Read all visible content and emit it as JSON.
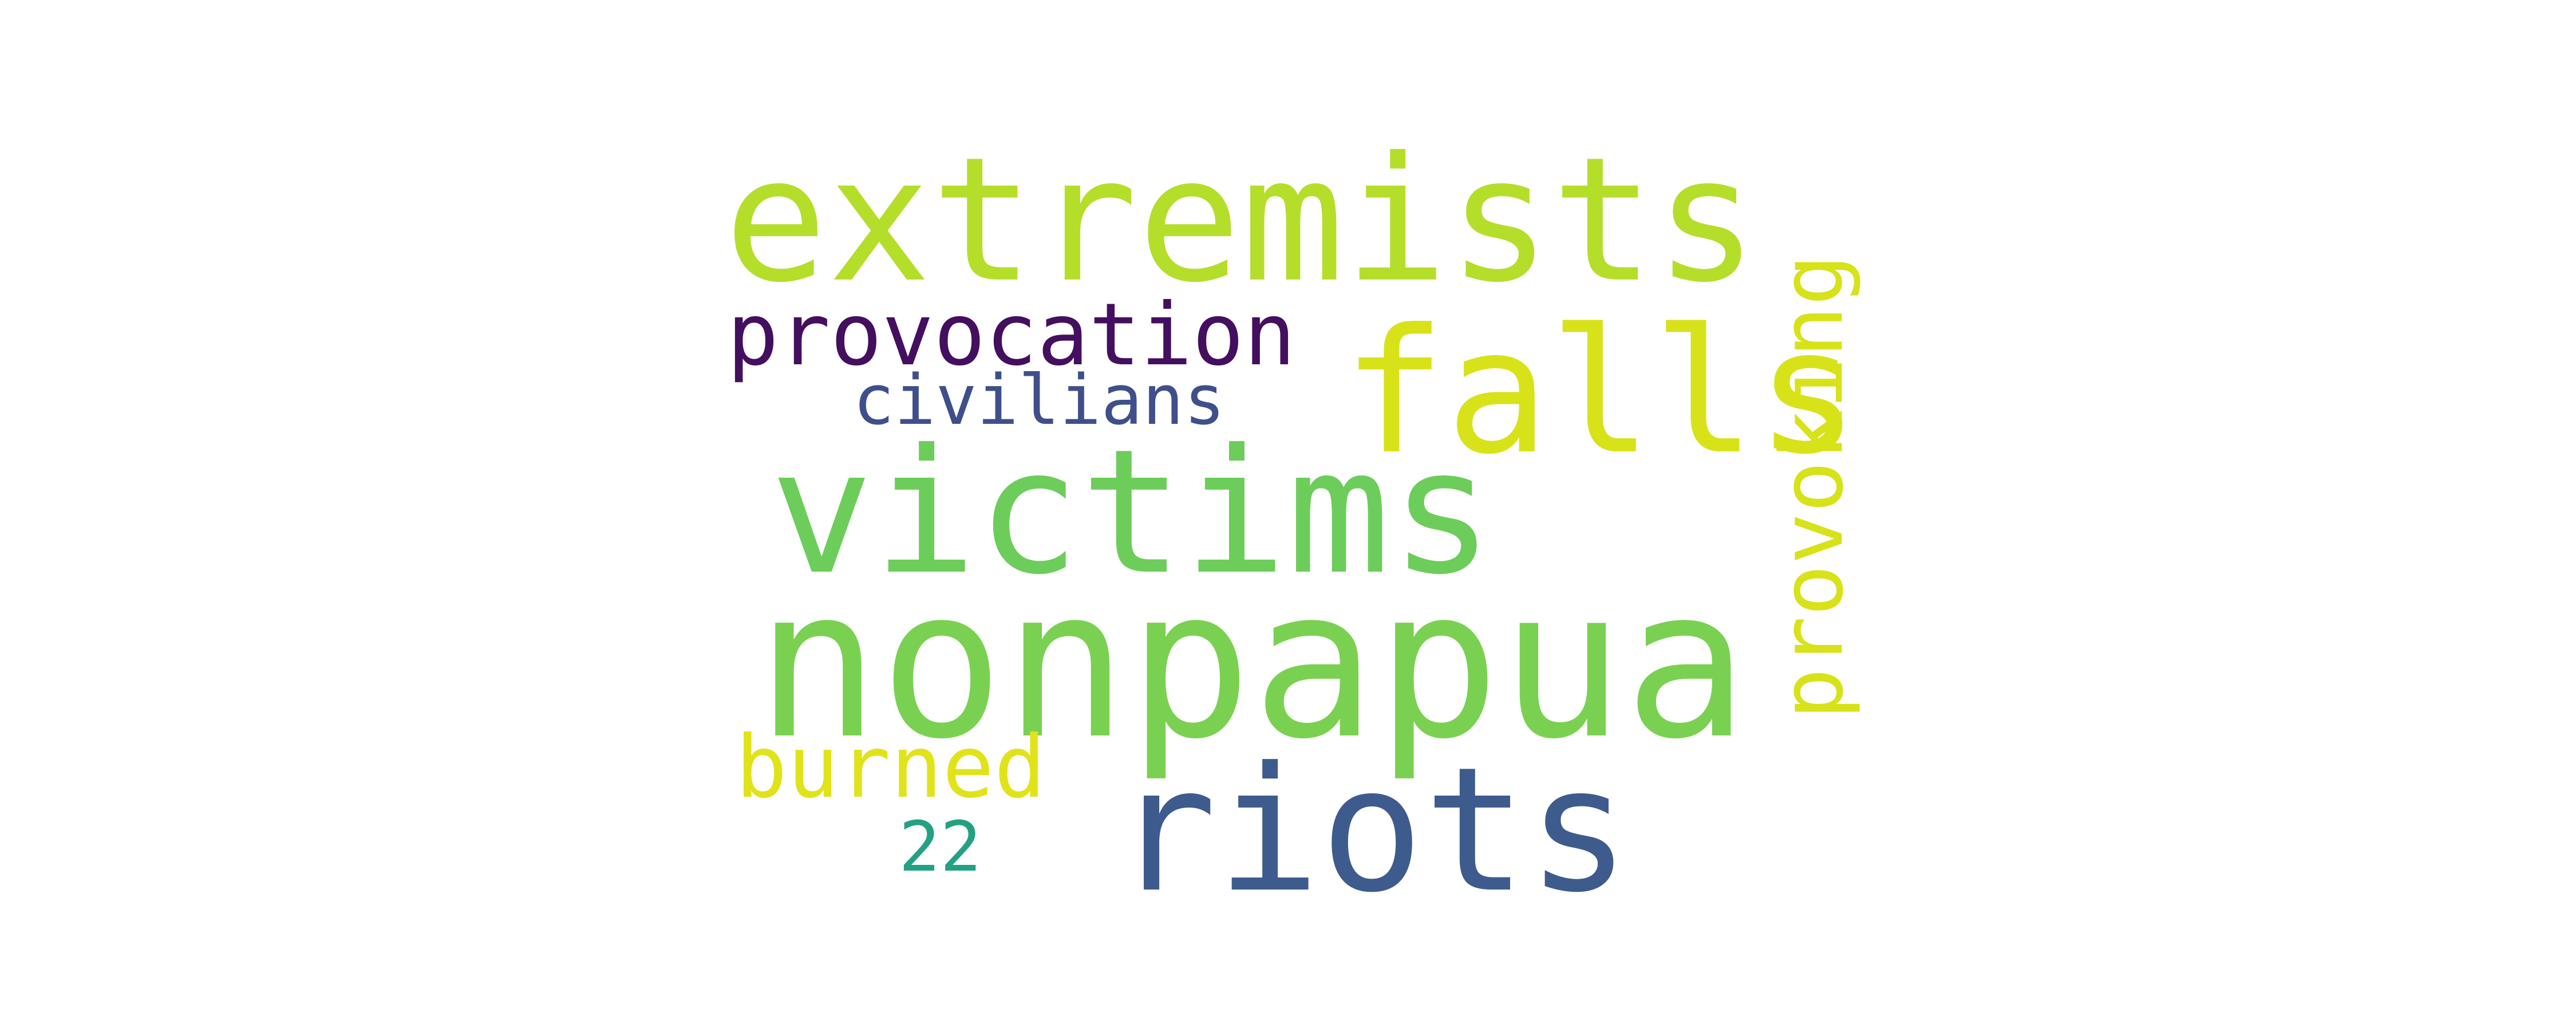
{
  "word_cloud": {
    "words": [
      {
        "id": "extremists",
        "text": "extremists",
        "color": "#b5de2b"
      },
      {
        "id": "falls",
        "text": "falls",
        "color": "#d8e219"
      },
      {
        "id": "victims",
        "text": "victims",
        "color": "#6ccd5a"
      },
      {
        "id": "nonpapua",
        "text": "nonpapua",
        "color": "#7ad151"
      },
      {
        "id": "riots",
        "text": "riots",
        "color": "#3e5b8d"
      },
      {
        "id": "provocation",
        "text": "provocation",
        "color": "#440f5f"
      },
      {
        "id": "civilians",
        "text": "civilians",
        "color": "#3f4f8b"
      },
      {
        "id": "burned",
        "text": "burned",
        "color": "#e1e31a"
      },
      {
        "id": "22",
        "text": "22",
        "color": "#23a183"
      },
      {
        "id": "provoking",
        "text": "provoking",
        "color": "#d7e219"
      }
    ]
  }
}
